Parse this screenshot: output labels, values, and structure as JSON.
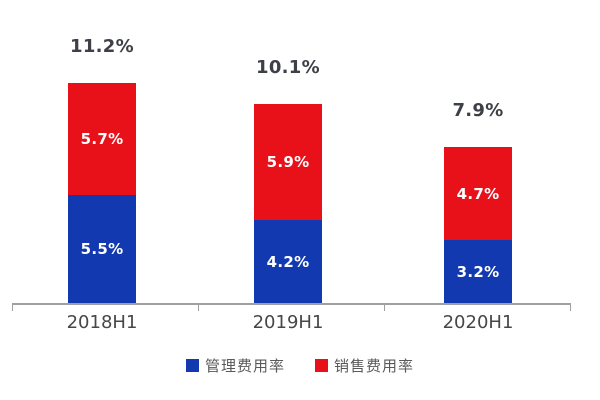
{
  "chart_data": {
    "type": "bar",
    "subtype": "stacked-column",
    "categories": [
      "2018H1",
      "2019H1",
      "2020H1"
    ],
    "series": [
      {
        "name": "管理费用率",
        "color": "#1239b0",
        "values": [
          5.5,
          4.2,
          3.2
        ],
        "labels": [
          "5.5%",
          "4.2%",
          "3.2%"
        ]
      },
      {
        "name": "销售费用率",
        "color": "#e8111a",
        "values": [
          5.7,
          5.9,
          4.7
        ],
        "labels": [
          "5.7%",
          "5.9%",
          "4.7%"
        ]
      }
    ],
    "totals": [
      11.2,
      10.1,
      7.9
    ],
    "total_labels": [
      "11.2%",
      "10.1%",
      "7.9%"
    ],
    "title": "",
    "xlabel": "",
    "ylabel": "",
    "ylim": [
      0,
      12
    ],
    "grid": false,
    "legend_position": "bottom",
    "axis_color": "#a0a0a0",
    "total_label_color": "#3d4046",
    "segment_label_color": "#ffffff"
  },
  "legend": {
    "items": [
      {
        "label": "管理费用率",
        "color": "#1239b0"
      },
      {
        "label": "销售费用率",
        "color": "#e8111a"
      }
    ]
  }
}
